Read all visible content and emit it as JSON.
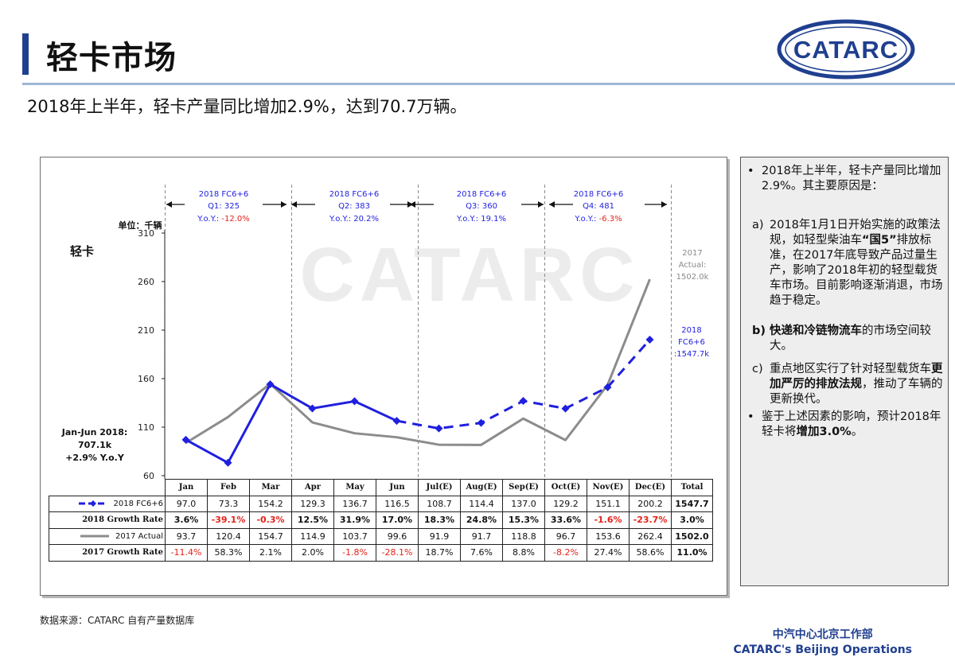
{
  "header": {
    "title": "轻卡市场",
    "subtitle": "2018年上半年，轻卡产量同比增加2.9%，达到70.7万辆。",
    "logo_text": "CATARC",
    "accent_color": "#1f3f8f"
  },
  "chart": {
    "watermark": "CATARC",
    "unit_label": "单位：千辆",
    "chart_label": "轻卡",
    "quarters": [
      {
        "line1": "2018 FC6+6",
        "line2": "Q1: 325",
        "yoy_prefix": "Y.o.Y.: ",
        "yoy_value": "-12.0%",
        "yoy_negative": true
      },
      {
        "line1": "2018 FC6+6",
        "line2": "Q2: 383",
        "yoy_prefix": "Y.o.Y.: ",
        "yoy_value": "20.2%",
        "yoy_negative": false
      },
      {
        "line1": "2018 FC6+6",
        "line2": "Q3: 360",
        "yoy_prefix": "Y.o.Y.: ",
        "yoy_value": "19.1%",
        "yoy_negative": false
      },
      {
        "line1": "2018 FC6+6",
        "line2": "Q4: 481",
        "yoy_prefix": "Y.o.Y.: ",
        "yoy_value": "-6.3%",
        "yoy_negative": true
      }
    ],
    "annotation_2017": [
      "2017",
      "Actual:",
      "1502.0k"
    ],
    "annotation_2018": [
      "2018",
      "FC6+6",
      ":1547.7k"
    ],
    "summary": [
      "Jan-Jun 2018:",
      "707.1k",
      "+2.9% Y.o.Y"
    ]
  },
  "chart_data": {
    "type": "line",
    "categories": [
      "Jan",
      "Feb",
      "Mar",
      "Apr",
      "May",
      "Jun",
      "Jul(E)",
      "Aug(E)",
      "Sep(E)",
      "Oct(E)",
      "Nov(E)",
      "Dec(E)"
    ],
    "series": [
      {
        "name": "2018 FC6+6",
        "values": [
          97.0,
          73.3,
          154.2,
          129.3,
          136.7,
          116.5,
          108.7,
          114.4,
          137.0,
          129.2,
          151.1,
          200.2
        ],
        "color": "#1f1fe0",
        "style": "solid-then-dashed",
        "forecast_from_index": 5
      },
      {
        "name": "2017 Actual",
        "values": [
          93.7,
          120.4,
          154.7,
          114.9,
          103.7,
          99.6,
          91.9,
          91.7,
          118.8,
          96.7,
          153.6,
          262.4
        ],
        "color": "#8c8c8c",
        "style": "solid"
      }
    ],
    "yticks": [
      60,
      110,
      160,
      210,
      260,
      310
    ],
    "ylim": [
      60,
      310
    ],
    "grid": false,
    "table": {
      "headers": [
        "Jan",
        "Feb",
        "Mar",
        "Apr",
        "May",
        "Jun",
        "Jul(E)",
        "Aug(E)",
        "Sep(E)",
        "Oct(E)",
        "Nov(E)",
        "Dec(E)",
        "Total"
      ],
      "rows": [
        {
          "label": "2018 FC6+6",
          "legend": "dashed-blue",
          "bold": false,
          "cells": [
            "97.0",
            "73.3",
            "154.2",
            "129.3",
            "136.7",
            "116.5",
            "108.7",
            "114.4",
            "137.0",
            "129.2",
            "151.1",
            "200.2",
            "1547.7"
          ]
        },
        {
          "label": "2018 Growth Rate",
          "legend": "",
          "bold": true,
          "cells": [
            "3.6%",
            "-39.1%",
            "-0.3%",
            "12.5%",
            "31.9%",
            "17.0%",
            "18.3%",
            "24.8%",
            "15.3%",
            "33.6%",
            "-1.6%",
            "-23.7%",
            "3.0%"
          ]
        },
        {
          "label": "2017 Actual",
          "legend": "solid-gray",
          "bold": false,
          "cells": [
            "93.7",
            "120.4",
            "154.7",
            "114.9",
            "103.7",
            "99.6",
            "91.9",
            "91.7",
            "118.8",
            "96.7",
            "153.6",
            "262.4",
            "1502.0"
          ]
        },
        {
          "label": "2017 Growth Rate",
          "legend": "",
          "bold": false,
          "cells": [
            "-11.4%",
            "58.3%",
            "2.1%",
            "2.0%",
            "-1.8%",
            "-28.1%",
            "18.7%",
            "7.6%",
            "8.8%",
            "-8.2%",
            "27.4%",
            "58.6%",
            "11.0%"
          ]
        }
      ]
    }
  },
  "notes": {
    "bullet1": "2018年上半年，轻卡产量同比增加2.9%。其主要原因是：",
    "a_prefix": "a) ",
    "a_text1": "2018年1月1日开始实施的政策法规，如轻型柴油车",
    "a_bold": "“国5”",
    "a_text2": "排放标准，在2017年底导致产品过量生产，影响了2018年初的轻型载货车市场。目前影响逐渐消退，市场趋于稳定。",
    "b_prefix": "b) ",
    "b_bold": "快递和冷链物流车",
    "b_text": "的市场空间较大。",
    "c_prefix": "c) ",
    "c_text1": "重点地区实行了针对轻型载货车",
    "c_bold": "更加严厉的排放法规",
    "c_text2": "，推动了车辆的更新换代。",
    "bullet2_text": "鉴于上述因素的影响，预计2018年轻卡将",
    "bullet2_bold": "增加3.0%",
    "bullet2_tail": "。"
  },
  "footer": {
    "source": "数据来源：CATARC 自有产量数据库",
    "org_cn": "中汽中心北京工作部",
    "org_en": "CATARC's Beijing Operations"
  }
}
